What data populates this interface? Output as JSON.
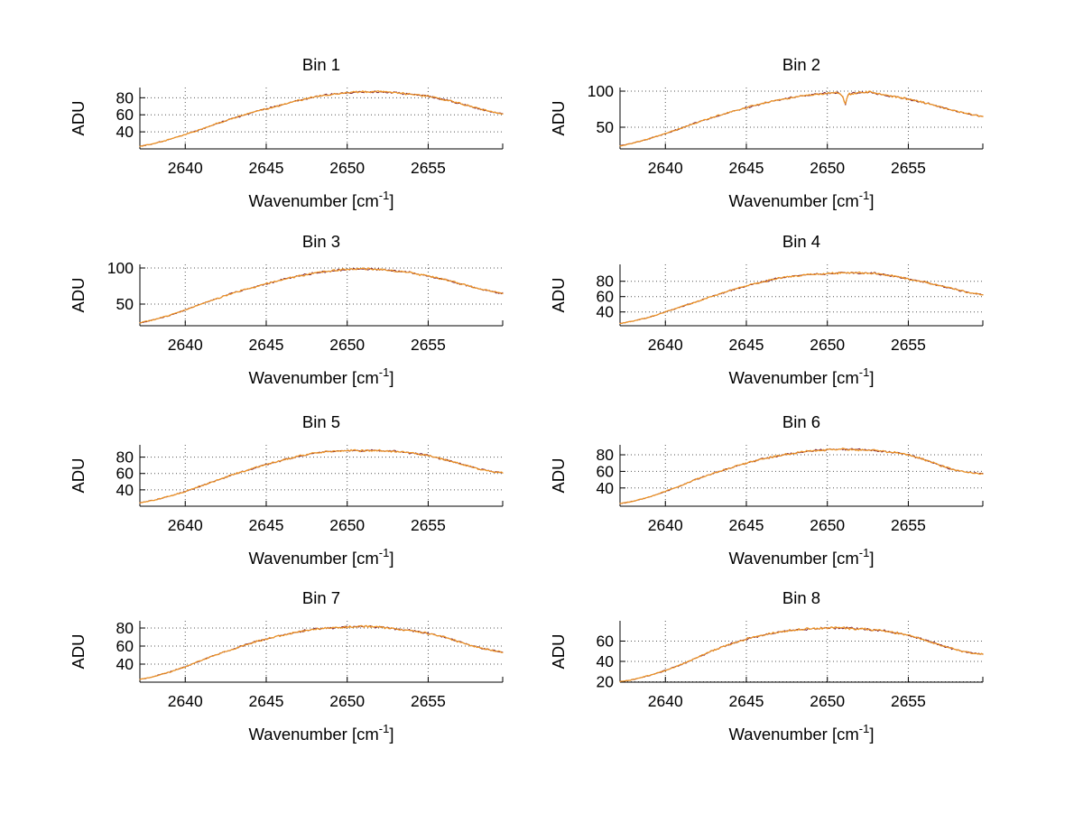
{
  "figure": {
    "background": "#ffffff",
    "axis_color": "#000000",
    "grid_color": "#555555",
    "text_color": "#000000",
    "overlay_color": "#ee9422",
    "underlay_color": "#7a2038"
  },
  "chart_data": [
    {
      "type": "line",
      "title": "Bin 1",
      "ylabel": "ADU",
      "xlabel_parts": {
        "pre": "Wavenumber [cm",
        "sup": "-1",
        "post": "]"
      },
      "xlim": [
        2637.2,
        2659.6
      ],
      "ylim": [
        20,
        92
      ],
      "x_ticks": [
        2640,
        2645,
        2650,
        2655
      ],
      "y_ticks": [
        40,
        60,
        80
      ],
      "grid": true,
      "noise": 1.6,
      "series": [
        {
          "name": "spectrum-underlay",
          "color": "#7a2038",
          "seed": 101
        },
        {
          "name": "spectrum-overlay",
          "color": "#ee9422",
          "seed": 201
        }
      ],
      "envelope": [
        [
          2637.2,
          23
        ],
        [
          2638,
          26
        ],
        [
          2639,
          31
        ],
        [
          2640,
          37
        ],
        [
          2641,
          43
        ],
        [
          2642,
          50
        ],
        [
          2643,
          56
        ],
        [
          2644,
          62
        ],
        [
          2645,
          67
        ],
        [
          2646,
          72
        ],
        [
          2647,
          77
        ],
        [
          2648,
          81
        ],
        [
          2649,
          84
        ],
        [
          2650,
          86
        ],
        [
          2651,
          87
        ],
        [
          2652,
          87
        ],
        [
          2653,
          86
        ],
        [
          2654,
          84
        ],
        [
          2655,
          82
        ],
        [
          2656,
          78
        ],
        [
          2657,
          73
        ],
        [
          2658,
          68
        ],
        [
          2659,
          63
        ],
        [
          2659.6,
          61
        ]
      ]
    },
    {
      "type": "line",
      "title": "Bin 2",
      "ylabel": "ADU",
      "xlabel_parts": {
        "pre": "Wavenumber [cm",
        "sup": "-1",
        "post": "]"
      },
      "xlim": [
        2637.2,
        2659.6
      ],
      "ylim": [
        20,
        105
      ],
      "x_ticks": [
        2640,
        2645,
        2650,
        2655
      ],
      "y_ticks": [
        50,
        100
      ],
      "grid": true,
      "noise": 1.9,
      "series": [
        {
          "name": "spectrum-underlay",
          "color": "#7a2038",
          "seed": 102
        },
        {
          "name": "spectrum-overlay",
          "color": "#ee9422",
          "seed": 202
        }
      ],
      "envelope": [
        [
          2637.2,
          24
        ],
        [
          2638,
          28
        ],
        [
          2639,
          34
        ],
        [
          2640,
          41
        ],
        [
          2641,
          49
        ],
        [
          2642,
          57
        ],
        [
          2643,
          64
        ],
        [
          2644,
          71
        ],
        [
          2645,
          77
        ],
        [
          2646,
          83
        ],
        [
          2647,
          88
        ],
        [
          2648,
          92
        ],
        [
          2649,
          95
        ],
        [
          2650,
          97
        ],
        [
          2650.7,
          98
        ],
        [
          2650.95,
          93
        ],
        [
          2651.1,
          80
        ],
        [
          2651.3,
          96
        ],
        [
          2652,
          98
        ],
        [
          2652.6,
          99
        ],
        [
          2653,
          97
        ],
        [
          2654,
          93
        ],
        [
          2655,
          89
        ],
        [
          2656,
          84
        ],
        [
          2657,
          78
        ],
        [
          2658,
          72
        ],
        [
          2659,
          67
        ],
        [
          2659.6,
          65
        ]
      ]
    },
    {
      "type": "line",
      "title": "Bin 3",
      "ylabel": "ADU",
      "xlabel_parts": {
        "pre": "Wavenumber [cm",
        "sup": "-1",
        "post": "]"
      },
      "xlim": [
        2637.2,
        2659.6
      ],
      "ylim": [
        20,
        105
      ],
      "x_ticks": [
        2640,
        2645,
        2650,
        2655
      ],
      "y_ticks": [
        50,
        100
      ],
      "grid": true,
      "noise": 1.9,
      "series": [
        {
          "name": "spectrum-underlay",
          "color": "#7a2038",
          "seed": 103
        },
        {
          "name": "spectrum-overlay",
          "color": "#ee9422",
          "seed": 203
        }
      ],
      "envelope": [
        [
          2637.2,
          24
        ],
        [
          2638,
          28
        ],
        [
          2639,
          34
        ],
        [
          2640,
          42
        ],
        [
          2641,
          50
        ],
        [
          2642,
          58
        ],
        [
          2643,
          66
        ],
        [
          2644,
          72
        ],
        [
          2645,
          78
        ],
        [
          2646,
          84
        ],
        [
          2647,
          89
        ],
        [
          2648,
          93
        ],
        [
          2649,
          96
        ],
        [
          2650,
          98
        ],
        [
          2651,
          99
        ],
        [
          2652,
          98
        ],
        [
          2653,
          96
        ],
        [
          2654,
          93
        ],
        [
          2655,
          89
        ],
        [
          2656,
          84
        ],
        [
          2657,
          78
        ],
        [
          2658,
          72
        ],
        [
          2659,
          67
        ],
        [
          2659.6,
          65
        ]
      ]
    },
    {
      "type": "line",
      "title": "Bin 4",
      "ylabel": "ADU",
      "xlabel_parts": {
        "pre": "Wavenumber [cm",
        "sup": "-1",
        "post": "]"
      },
      "xlim": [
        2637.2,
        2659.6
      ],
      "ylim": [
        22,
        102
      ],
      "x_ticks": [
        2640,
        2645,
        2650,
        2655
      ],
      "y_ticks": [
        40,
        60,
        80
      ],
      "grid": true,
      "noise": 1.7,
      "series": [
        {
          "name": "spectrum-underlay",
          "color": "#7a2038",
          "seed": 104
        },
        {
          "name": "spectrum-overlay",
          "color": "#ee9422",
          "seed": 204
        }
      ],
      "envelope": [
        [
          2637.2,
          25
        ],
        [
          2638,
          28
        ],
        [
          2639,
          33
        ],
        [
          2640,
          40
        ],
        [
          2641,
          47
        ],
        [
          2642,
          54
        ],
        [
          2643,
          61
        ],
        [
          2644,
          68
        ],
        [
          2645,
          74
        ],
        [
          2646,
          79
        ],
        [
          2647,
          84
        ],
        [
          2648,
          87
        ],
        [
          2649,
          89
        ],
        [
          2650,
          90
        ],
        [
          2651,
          91
        ],
        [
          2652,
          91
        ],
        [
          2653,
          90
        ],
        [
          2654,
          87
        ],
        [
          2655,
          83
        ],
        [
          2656,
          79
        ],
        [
          2657,
          74
        ],
        [
          2658,
          69
        ],
        [
          2659,
          64
        ],
        [
          2659.6,
          63
        ]
      ]
    },
    {
      "type": "line",
      "title": "Bin 5",
      "ylabel": "ADU",
      "xlabel_parts": {
        "pre": "Wavenumber [cm",
        "sup": "-1",
        "post": "]"
      },
      "xlim": [
        2637.2,
        2659.6
      ],
      "ylim": [
        20,
        95
      ],
      "x_ticks": [
        2640,
        2645,
        2650,
        2655
      ],
      "y_ticks": [
        40,
        60,
        80
      ],
      "grid": true,
      "noise": 1.6,
      "series": [
        {
          "name": "spectrum-underlay",
          "color": "#7a2038",
          "seed": 105
        },
        {
          "name": "spectrum-overlay",
          "color": "#ee9422",
          "seed": 205
        }
      ],
      "envelope": [
        [
          2637.2,
          24
        ],
        [
          2638,
          27
        ],
        [
          2639,
          32
        ],
        [
          2640,
          38
        ],
        [
          2641,
          45
        ],
        [
          2642,
          52
        ],
        [
          2643,
          59
        ],
        [
          2644,
          65
        ],
        [
          2645,
          71
        ],
        [
          2646,
          76
        ],
        [
          2647,
          81
        ],
        [
          2648,
          85
        ],
        [
          2649,
          87
        ],
        [
          2650,
          88
        ],
        [
          2651,
          88
        ],
        [
          2652,
          88
        ],
        [
          2653,
          87
        ],
        [
          2654,
          85
        ],
        [
          2655,
          82
        ],
        [
          2656,
          77
        ],
        [
          2657,
          72
        ],
        [
          2658,
          66
        ],
        [
          2659,
          62
        ],
        [
          2659.6,
          61
        ]
      ]
    },
    {
      "type": "line",
      "title": "Bin 6",
      "ylabel": "ADU",
      "xlabel_parts": {
        "pre": "Wavenumber [cm",
        "sup": "-1",
        "post": "]"
      },
      "xlim": [
        2637.2,
        2659.6
      ],
      "ylim": [
        18,
        92
      ],
      "x_ticks": [
        2640,
        2645,
        2650,
        2655
      ],
      "y_ticks": [
        40,
        60,
        80
      ],
      "grid": true,
      "noise": 1.6,
      "series": [
        {
          "name": "spectrum-underlay",
          "color": "#7a2038",
          "seed": 106
        },
        {
          "name": "spectrum-overlay",
          "color": "#ee9422",
          "seed": 206
        }
      ],
      "envelope": [
        [
          2637.2,
          21
        ],
        [
          2638,
          24
        ],
        [
          2639,
          29
        ],
        [
          2640,
          36
        ],
        [
          2641,
          43
        ],
        [
          2642,
          51
        ],
        [
          2643,
          58
        ],
        [
          2644,
          64
        ],
        [
          2645,
          70
        ],
        [
          2646,
          75
        ],
        [
          2647,
          79
        ],
        [
          2648,
          82
        ],
        [
          2649,
          85
        ],
        [
          2650,
          86
        ],
        [
          2651,
          87
        ],
        [
          2652,
          86
        ],
        [
          2653,
          85
        ],
        [
          2654,
          83
        ],
        [
          2655,
          80
        ],
        [
          2656,
          74
        ],
        [
          2657,
          67
        ],
        [
          2658,
          61
        ],
        [
          2659,
          58
        ],
        [
          2659.6,
          57
        ]
      ]
    },
    {
      "type": "line",
      "title": "Bin 7",
      "ylabel": "ADU",
      "xlabel_parts": {
        "pre": "Wavenumber [cm",
        "sup": "-1",
        "post": "]"
      },
      "xlim": [
        2637.2,
        2659.6
      ],
      "ylim": [
        20,
        88
      ],
      "x_ticks": [
        2640,
        2645,
        2650,
        2655
      ],
      "y_ticks": [
        40,
        60,
        80
      ],
      "grid": true,
      "noise": 1.5,
      "series": [
        {
          "name": "spectrum-underlay",
          "color": "#7a2038",
          "seed": 107
        },
        {
          "name": "spectrum-overlay",
          "color": "#ee9422",
          "seed": 207
        }
      ],
      "envelope": [
        [
          2637.2,
          23
        ],
        [
          2638,
          26
        ],
        [
          2639,
          31
        ],
        [
          2640,
          37
        ],
        [
          2641,
          44
        ],
        [
          2642,
          51
        ],
        [
          2643,
          57
        ],
        [
          2644,
          63
        ],
        [
          2645,
          68
        ],
        [
          2646,
          72
        ],
        [
          2647,
          76
        ],
        [
          2648,
          79
        ],
        [
          2649,
          80
        ],
        [
          2650,
          81
        ],
        [
          2651,
          82
        ],
        [
          2652,
          81
        ],
        [
          2653,
          79
        ],
        [
          2654,
          77
        ],
        [
          2655,
          74
        ],
        [
          2656,
          70
        ],
        [
          2657,
          64
        ],
        [
          2658,
          59
        ],
        [
          2659,
          55
        ],
        [
          2659.6,
          53
        ]
      ]
    },
    {
      "type": "line",
      "title": "Bin 8",
      "ylabel": "ADU",
      "xlabel_parts": {
        "pre": "Wavenumber [cm",
        "sup": "-1",
        "post": "]"
      },
      "xlim": [
        2637.2,
        2659.6
      ],
      "ylim": [
        19.5,
        80
      ],
      "x_ticks": [
        2640,
        2645,
        2650,
        2655
      ],
      "y_ticks": [
        20,
        40,
        60
      ],
      "grid": true,
      "noise": 1.5,
      "series": [
        {
          "name": "spectrum-underlay",
          "color": "#7a2038",
          "seed": 108
        },
        {
          "name": "spectrum-overlay",
          "color": "#ee9422",
          "seed": 208
        }
      ],
      "envelope": [
        [
          2637.2,
          20
        ],
        [
          2638,
          22
        ],
        [
          2639,
          26
        ],
        [
          2640,
          31
        ],
        [
          2641,
          37
        ],
        [
          2642,
          44
        ],
        [
          2643,
          51
        ],
        [
          2644,
          57
        ],
        [
          2645,
          62
        ],
        [
          2646,
          66
        ],
        [
          2647,
          69
        ],
        [
          2648,
          71
        ],
        [
          2649,
          72
        ],
        [
          2650,
          73
        ],
        [
          2651,
          73
        ],
        [
          2652,
          72
        ],
        [
          2653,
          71
        ],
        [
          2654,
          69
        ],
        [
          2655,
          66
        ],
        [
          2656,
          61
        ],
        [
          2657,
          56
        ],
        [
          2658,
          51
        ],
        [
          2659,
          48
        ],
        [
          2659.6,
          47
        ]
      ]
    }
  ]
}
